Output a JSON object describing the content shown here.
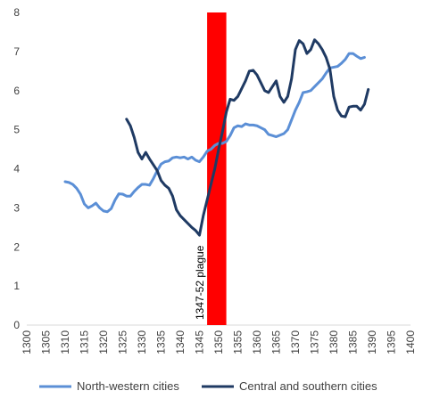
{
  "chart_data": {
    "type": "line",
    "title": "",
    "xlabel": "",
    "ylabel": "",
    "xlim": [
      1300,
      1400
    ],
    "ylim": [
      0,
      8
    ],
    "x_ticks": [
      "1300",
      "1305",
      "1310",
      "1315",
      "1320",
      "1325",
      "1330",
      "1335",
      "1340",
      "1345",
      "1350",
      "1355",
      "1360",
      "1365",
      "1370",
      "1375",
      "1380",
      "1385",
      "1390",
      "1395",
      "1400"
    ],
    "y_ticks": [
      "0",
      "1",
      "2",
      "3",
      "4",
      "5",
      "6",
      "7",
      "8"
    ],
    "grid": false,
    "legend_position": "bottom",
    "annotation": {
      "label": "1347-52 plague",
      "x_start": 1347,
      "x_end": 1352,
      "color": "#ff0000"
    },
    "series": [
      {
        "name": "North-western cities",
        "color": "#5b8fd6",
        "points": [
          [
            1310,
            3.67
          ],
          [
            1311,
            3.65
          ],
          [
            1312,
            3.6
          ],
          [
            1313,
            3.5
          ],
          [
            1314,
            3.35
          ],
          [
            1315,
            3.1
          ],
          [
            1316,
            3.0
          ],
          [
            1317,
            3.05
          ],
          [
            1318,
            3.12
          ],
          [
            1319,
            3.0
          ],
          [
            1320,
            2.92
          ],
          [
            1321,
            2.9
          ],
          [
            1322,
            2.98
          ],
          [
            1323,
            3.2
          ],
          [
            1324,
            3.36
          ],
          [
            1325,
            3.35
          ],
          [
            1326,
            3.3
          ],
          [
            1327,
            3.3
          ],
          [
            1328,
            3.42
          ],
          [
            1329,
            3.52
          ],
          [
            1330,
            3.6
          ],
          [
            1331,
            3.6
          ],
          [
            1332,
            3.58
          ],
          [
            1333,
            3.75
          ],
          [
            1334,
            3.95
          ],
          [
            1335,
            4.12
          ],
          [
            1336,
            4.18
          ],
          [
            1337,
            4.2
          ],
          [
            1338,
            4.28
          ],
          [
            1339,
            4.3
          ],
          [
            1340,
            4.28
          ],
          [
            1341,
            4.3
          ],
          [
            1342,
            4.25
          ],
          [
            1343,
            4.3
          ],
          [
            1344,
            4.22
          ],
          [
            1345,
            4.18
          ],
          [
            1346,
            4.3
          ],
          [
            1347,
            4.45
          ],
          [
            1348,
            4.5
          ],
          [
            1349,
            4.6
          ],
          [
            1350,
            4.65
          ],
          [
            1351,
            4.65
          ],
          [
            1352,
            4.7
          ],
          [
            1353,
            4.85
          ],
          [
            1354,
            5.05
          ],
          [
            1355,
            5.1
          ],
          [
            1356,
            5.08
          ],
          [
            1357,
            5.15
          ],
          [
            1358,
            5.12
          ],
          [
            1359,
            5.12
          ],
          [
            1360,
            5.1
          ],
          [
            1361,
            5.05
          ],
          [
            1362,
            5.0
          ],
          [
            1363,
            4.88
          ],
          [
            1364,
            4.85
          ],
          [
            1365,
            4.82
          ],
          [
            1366,
            4.86
          ],
          [
            1367,
            4.9
          ],
          [
            1368,
            5.0
          ],
          [
            1369,
            5.25
          ],
          [
            1370,
            5.5
          ],
          [
            1371,
            5.7
          ],
          [
            1372,
            5.95
          ],
          [
            1373,
            5.97
          ],
          [
            1374,
            6.0
          ],
          [
            1375,
            6.1
          ],
          [
            1376,
            6.2
          ],
          [
            1377,
            6.3
          ],
          [
            1378,
            6.45
          ],
          [
            1379,
            6.58
          ],
          [
            1380,
            6.6
          ],
          [
            1381,
            6.62
          ],
          [
            1382,
            6.7
          ],
          [
            1383,
            6.8
          ],
          [
            1384,
            6.95
          ],
          [
            1385,
            6.95
          ],
          [
            1386,
            6.88
          ],
          [
            1387,
            6.82
          ],
          [
            1388,
            6.85
          ]
        ]
      },
      {
        "name": "Central and southern cities",
        "color": "#1f3a63",
        "points": [
          [
            1326,
            5.27
          ],
          [
            1327,
            5.1
          ],
          [
            1328,
            4.8
          ],
          [
            1329,
            4.42
          ],
          [
            1330,
            4.25
          ],
          [
            1331,
            4.42
          ],
          [
            1332,
            4.25
          ],
          [
            1333,
            4.1
          ],
          [
            1334,
            3.95
          ],
          [
            1335,
            3.7
          ],
          [
            1336,
            3.58
          ],
          [
            1337,
            3.5
          ],
          [
            1338,
            3.3
          ],
          [
            1339,
            2.95
          ],
          [
            1340,
            2.8
          ],
          [
            1341,
            2.7
          ],
          [
            1342,
            2.6
          ],
          [
            1343,
            2.5
          ],
          [
            1344,
            2.42
          ],
          [
            1345,
            2.3
          ],
          [
            1346,
            2.8
          ],
          [
            1347,
            3.2
          ],
          [
            1348,
            3.6
          ],
          [
            1349,
            4.0
          ],
          [
            1350,
            4.5
          ],
          [
            1351,
            4.95
          ],
          [
            1352,
            5.45
          ],
          [
            1353,
            5.78
          ],
          [
            1354,
            5.75
          ],
          [
            1355,
            5.85
          ],
          [
            1356,
            6.05
          ],
          [
            1357,
            6.25
          ],
          [
            1358,
            6.5
          ],
          [
            1359,
            6.52
          ],
          [
            1360,
            6.4
          ],
          [
            1361,
            6.2
          ],
          [
            1362,
            6.0
          ],
          [
            1363,
            5.95
          ],
          [
            1364,
            6.1
          ],
          [
            1365,
            6.25
          ],
          [
            1366,
            5.85
          ],
          [
            1367,
            5.7
          ],
          [
            1368,
            5.85
          ],
          [
            1369,
            6.3
          ],
          [
            1370,
            7.05
          ],
          [
            1371,
            7.28
          ],
          [
            1372,
            7.2
          ],
          [
            1373,
            6.95
          ],
          [
            1374,
            7.05
          ],
          [
            1375,
            7.3
          ],
          [
            1376,
            7.2
          ],
          [
            1377,
            7.05
          ],
          [
            1378,
            6.85
          ],
          [
            1379,
            6.55
          ],
          [
            1380,
            5.85
          ],
          [
            1381,
            5.5
          ],
          [
            1382,
            5.35
          ],
          [
            1383,
            5.33
          ],
          [
            1384,
            5.58
          ],
          [
            1385,
            5.6
          ],
          [
            1386,
            5.6
          ],
          [
            1387,
            5.5
          ],
          [
            1388,
            5.65
          ],
          [
            1389,
            6.03
          ]
        ]
      }
    ]
  }
}
